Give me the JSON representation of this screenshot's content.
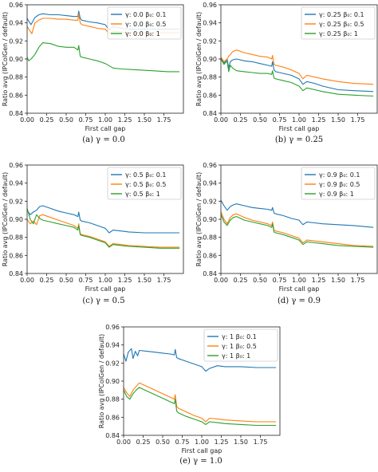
{
  "chart_data": [
    {
      "type": "line",
      "caption": "(a) γ = 0.0",
      "xlabel": "First call gap",
      "ylabel": "Ratio avg (IPColGen / default)",
      "xlim": [
        0,
        2.0
      ],
      "ylim": [
        0.84,
        0.96
      ],
      "xticks": [
        "0.00",
        "0.25",
        "0.50",
        "0.75",
        "1.00",
        "1.25",
        "1.50",
        "1.75"
      ],
      "yticks": [
        "0.84",
        "0.86",
        "0.88",
        "0.90",
        "0.92",
        "0.94",
        "0.96"
      ],
      "legend_position": "top-right",
      "series": [
        {
          "name": "γ: 0.0  β₀: 0.1",
          "color": "#1f77b4",
          "x": [
            0,
            0.02,
            0.05,
            0.1,
            0.15,
            0.2,
            0.3,
            0.4,
            0.5,
            0.6,
            0.65,
            0.66,
            0.68,
            0.7,
            0.8,
            0.9,
            1.0,
            1.05,
            1.1,
            1.2,
            1.3,
            1.5,
            1.7,
            1.95
          ],
          "y": [
            0.945,
            0.942,
            0.938,
            0.946,
            0.949,
            0.95,
            0.949,
            0.949,
            0.948,
            0.947,
            0.947,
            0.953,
            0.945,
            0.943,
            0.941,
            0.94,
            0.938,
            0.932,
            0.936,
            0.934,
            0.933,
            0.933,
            0.933,
            0.933
          ]
        },
        {
          "name": "γ: 0.0  β₀: 0.5",
          "color": "#ff7f0e",
          "x": [
            0,
            0.03,
            0.06,
            0.1,
            0.15,
            0.2,
            0.3,
            0.4,
            0.5,
            0.6,
            0.65,
            0.66,
            0.68,
            0.7,
            0.8,
            0.9,
            1.0,
            1.05,
            1.1,
            1.2,
            1.3,
            1.5,
            1.7,
            1.95
          ],
          "y": [
            0.936,
            0.932,
            0.928,
            0.94,
            0.943,
            0.945,
            0.945,
            0.944,
            0.944,
            0.943,
            0.943,
            0.95,
            0.94,
            0.938,
            0.936,
            0.934,
            0.933,
            0.928,
            0.931,
            0.93,
            0.929,
            0.929,
            0.929,
            0.929
          ]
        },
        {
          "name": "γ: 0.0  β₀: 1",
          "color": "#2ca02c",
          "x": [
            0,
            0.02,
            0.05,
            0.1,
            0.15,
            0.2,
            0.3,
            0.4,
            0.5,
            0.6,
            0.65,
            0.66,
            0.68,
            0.7,
            0.8,
            0.9,
            1.0,
            1.1,
            1.2,
            1.4,
            1.6,
            1.8,
            1.95
          ],
          "y": [
            0.902,
            0.898,
            0.9,
            0.905,
            0.913,
            0.918,
            0.917,
            0.914,
            0.913,
            0.913,
            0.91,
            0.915,
            0.903,
            0.902,
            0.9,
            0.898,
            0.895,
            0.89,
            0.889,
            0.888,
            0.887,
            0.886,
            0.886
          ]
        }
      ]
    },
    {
      "type": "line",
      "caption": "(b) γ = 0.25",
      "xlabel": "First call gap",
      "ylabel": "Ratio avg (IPColGen / default)",
      "xlim": [
        0,
        2.0
      ],
      "ylim": [
        0.84,
        0.96
      ],
      "xticks": [
        "0.00",
        "0.25",
        "0.50",
        "0.75",
        "1.00",
        "1.25",
        "1.50",
        "1.75"
      ],
      "yticks": [
        "0.84",
        "0.86",
        "0.88",
        "0.90",
        "0.92",
        "0.94",
        "0.96"
      ],
      "legend_position": "top-right",
      "series": [
        {
          "name": "γ: 0.25  β₀: 0.1",
          "color": "#1f77b4",
          "x": [
            0,
            0.04,
            0.08,
            0.1,
            0.12,
            0.15,
            0.2,
            0.3,
            0.4,
            0.5,
            0.6,
            0.65,
            0.66,
            0.68,
            0.7,
            0.8,
            0.9,
            1.0,
            1.05,
            1.1,
            1.2,
            1.3,
            1.5,
            1.7,
            1.95
          ],
          "y": [
            0.901,
            0.895,
            0.9,
            0.89,
            0.897,
            0.899,
            0.9,
            0.898,
            0.897,
            0.895,
            0.893,
            0.892,
            0.897,
            0.888,
            0.886,
            0.884,
            0.882,
            0.878,
            0.872,
            0.875,
            0.873,
            0.87,
            0.866,
            0.865,
            0.864
          ]
        },
        {
          "name": "γ: 0.25  β₀: 0.5",
          "color": "#ff7f0e",
          "x": [
            0,
            0.04,
            0.08,
            0.1,
            0.15,
            0.2,
            0.3,
            0.4,
            0.5,
            0.6,
            0.65,
            0.66,
            0.68,
            0.7,
            0.8,
            0.9,
            1.0,
            1.05,
            1.1,
            1.2,
            1.3,
            1.5,
            1.7,
            1.95
          ],
          "y": [
            0.902,
            0.897,
            0.9,
            0.903,
            0.908,
            0.91,
            0.907,
            0.905,
            0.903,
            0.902,
            0.9,
            0.904,
            0.894,
            0.893,
            0.891,
            0.888,
            0.884,
            0.878,
            0.882,
            0.88,
            0.878,
            0.875,
            0.873,
            0.872
          ]
        },
        {
          "name": "γ: 0.25  β₀: 1",
          "color": "#2ca02c",
          "x": [
            0,
            0.04,
            0.08,
            0.1,
            0.12,
            0.15,
            0.2,
            0.3,
            0.4,
            0.5,
            0.6,
            0.65,
            0.66,
            0.68,
            0.7,
            0.8,
            0.9,
            1.0,
            1.05,
            1.1,
            1.2,
            1.3,
            1.5,
            1.7,
            1.95
          ],
          "y": [
            0.9,
            0.894,
            0.898,
            0.886,
            0.893,
            0.89,
            0.887,
            0.886,
            0.885,
            0.884,
            0.884,
            0.883,
            0.887,
            0.879,
            0.878,
            0.876,
            0.874,
            0.87,
            0.865,
            0.868,
            0.866,
            0.864,
            0.861,
            0.86,
            0.859
          ]
        }
      ]
    },
    {
      "type": "line",
      "caption": "(c) γ = 0.5",
      "xlabel": "First call gap",
      "ylabel": "Ratio avg (IPColGen / default)",
      "xlim": [
        0,
        2.0
      ],
      "ylim": [
        0.84,
        0.96
      ],
      "xticks": [
        "0.00",
        "0.25",
        "0.50",
        "0.75",
        "1.00",
        "1.25",
        "1.50",
        "1.75"
      ],
      "yticks": [
        "0.84",
        "0.86",
        "0.88",
        "0.90",
        "0.92",
        "0.94",
        "0.96"
      ],
      "legend_position": "top-right",
      "series": [
        {
          "name": "γ: 0.5  β₀: 0.1",
          "color": "#1f77b4",
          "x": [
            0,
            0.04,
            0.08,
            0.12,
            0.16,
            0.2,
            0.3,
            0.4,
            0.5,
            0.6,
            0.65,
            0.66,
            0.68,
            0.7,
            0.8,
            0.9,
            1.0,
            1.05,
            1.1,
            1.2,
            1.3,
            1.5,
            1.7,
            1.95
          ],
          "y": [
            0.91,
            0.905,
            0.908,
            0.91,
            0.914,
            0.915,
            0.912,
            0.909,
            0.907,
            0.905,
            0.903,
            0.908,
            0.899,
            0.898,
            0.896,
            0.893,
            0.89,
            0.885,
            0.888,
            0.887,
            0.886,
            0.885,
            0.885,
            0.885
          ]
        },
        {
          "name": "γ: 0.5  β₀: 0.5",
          "color": "#ff7f0e",
          "x": [
            0,
            0.04,
            0.08,
            0.12,
            0.16,
            0.2,
            0.3,
            0.4,
            0.5,
            0.6,
            0.65,
            0.66,
            0.68,
            0.7,
            0.8,
            0.9,
            1.0,
            1.05,
            1.1,
            1.2,
            1.3,
            1.5,
            1.7,
            1.95
          ],
          "y": [
            0.9,
            0.895,
            0.898,
            0.894,
            0.904,
            0.905,
            0.902,
            0.899,
            0.896,
            0.893,
            0.89,
            0.895,
            0.884,
            0.883,
            0.881,
            0.878,
            0.875,
            0.87,
            0.873,
            0.872,
            0.871,
            0.87,
            0.869,
            0.869
          ]
        },
        {
          "name": "γ: 0.5  β₀: 1",
          "color": "#2ca02c",
          "x": [
            0,
            0.04,
            0.08,
            0.12,
            0.16,
            0.2,
            0.3,
            0.4,
            0.5,
            0.6,
            0.65,
            0.66,
            0.68,
            0.7,
            0.8,
            0.9,
            1.0,
            1.05,
            1.1,
            1.2,
            1.3,
            1.5,
            1.7,
            1.95
          ],
          "y": [
            0.912,
            0.9,
            0.895,
            0.905,
            0.901,
            0.899,
            0.897,
            0.895,
            0.893,
            0.891,
            0.888,
            0.893,
            0.883,
            0.882,
            0.88,
            0.877,
            0.874,
            0.869,
            0.872,
            0.871,
            0.87,
            0.869,
            0.868,
            0.868
          ]
        }
      ]
    },
    {
      "type": "line",
      "caption": "(d) γ = 0.9",
      "xlabel": "First call gap",
      "ylabel": "Ratio avg (IPColGen / default)",
      "xlim": [
        0,
        2.0
      ],
      "ylim": [
        0.84,
        0.96
      ],
      "xticks": [
        "0.00",
        "0.25",
        "0.50",
        "0.75",
        "1.00",
        "1.25",
        "1.50",
        "1.75"
      ],
      "yticks": [
        "0.84",
        "0.86",
        "0.88",
        "0.90",
        "0.92",
        "0.94",
        "0.96"
      ],
      "legend_position": "top-right",
      "series": [
        {
          "name": "γ: 0.9  β₀: 0.1",
          "color": "#1f77b4",
          "x": [
            0,
            0.04,
            0.08,
            0.12,
            0.16,
            0.2,
            0.3,
            0.4,
            0.5,
            0.6,
            0.65,
            0.66,
            0.68,
            0.7,
            0.8,
            0.9,
            1.0,
            1.05,
            1.1,
            1.2,
            1.3,
            1.5,
            1.7,
            1.95
          ],
          "y": [
            0.921,
            0.915,
            0.91,
            0.914,
            0.916,
            0.917,
            0.915,
            0.913,
            0.912,
            0.911,
            0.91,
            0.913,
            0.907,
            0.906,
            0.904,
            0.901,
            0.899,
            0.894,
            0.897,
            0.896,
            0.895,
            0.894,
            0.893,
            0.891
          ]
        },
        {
          "name": "γ: 0.9  β₀: 0.5",
          "color": "#ff7f0e",
          "x": [
            0,
            0.04,
            0.08,
            0.12,
            0.16,
            0.2,
            0.3,
            0.4,
            0.5,
            0.6,
            0.65,
            0.66,
            0.68,
            0.7,
            0.8,
            0.9,
            1.0,
            1.05,
            1.1,
            1.2,
            1.3,
            1.5,
            1.7,
            1.95
          ],
          "y": [
            0.908,
            0.9,
            0.895,
            0.902,
            0.905,
            0.906,
            0.902,
            0.899,
            0.897,
            0.895,
            0.893,
            0.897,
            0.888,
            0.887,
            0.885,
            0.882,
            0.879,
            0.874,
            0.877,
            0.876,
            0.875,
            0.873,
            0.871,
            0.87
          ]
        },
        {
          "name": "γ: 0.9  β₀: 1",
          "color": "#2ca02c",
          "x": [
            0,
            0.04,
            0.08,
            0.12,
            0.16,
            0.2,
            0.3,
            0.4,
            0.5,
            0.6,
            0.65,
            0.66,
            0.68,
            0.7,
            0.8,
            0.9,
            1.0,
            1.05,
            1.1,
            1.2,
            1.3,
            1.5,
            1.7,
            1.95
          ],
          "y": [
            0.905,
            0.897,
            0.893,
            0.899,
            0.902,
            0.903,
            0.899,
            0.897,
            0.895,
            0.893,
            0.891,
            0.895,
            0.886,
            0.885,
            0.883,
            0.88,
            0.877,
            0.872,
            0.875,
            0.874,
            0.873,
            0.871,
            0.87,
            0.869
          ]
        }
      ]
    },
    {
      "type": "line",
      "caption": "(e) γ = 1.0",
      "xlabel": "First call gap",
      "ylabel": "Ratio avg (IPColGen / default)",
      "xlim": [
        0,
        2.0
      ],
      "ylim": [
        0.84,
        0.96
      ],
      "xticks": [
        "0.00",
        "0.25",
        "0.50",
        "0.75",
        "1.00",
        "1.25",
        "1.50",
        "1.75"
      ],
      "yticks": [
        "0.84",
        "0.86",
        "0.88",
        "0.90",
        "0.92",
        "0.94",
        "0.96"
      ],
      "legend_position": "top-right",
      "series": [
        {
          "name": "γ: 1  β₀: 0.1",
          "color": "#1f77b4",
          "x": [
            0,
            0.03,
            0.06,
            0.1,
            0.12,
            0.15,
            0.18,
            0.2,
            0.3,
            0.4,
            0.5,
            0.6,
            0.65,
            0.66,
            0.68,
            0.7,
            0.8,
            0.9,
            1.0,
            1.05,
            1.1,
            1.2,
            1.3,
            1.5,
            1.7,
            1.95
          ],
          "y": [
            0.93,
            0.922,
            0.932,
            0.936,
            0.925,
            0.933,
            0.928,
            0.934,
            0.933,
            0.932,
            0.931,
            0.93,
            0.929,
            0.935,
            0.926,
            0.925,
            0.922,
            0.919,
            0.916,
            0.911,
            0.914,
            0.917,
            0.916,
            0.916,
            0.915,
            0.915
          ]
        },
        {
          "name": "γ: 1  β₀: 0.5",
          "color": "#ff7f0e",
          "x": [
            0,
            0.04,
            0.08,
            0.12,
            0.16,
            0.2,
            0.25,
            0.3,
            0.4,
            0.5,
            0.6,
            0.65,
            0.66,
            0.68,
            0.7,
            0.8,
            0.9,
            1.0,
            1.05,
            1.1,
            1.2,
            1.3,
            1.5,
            1.7,
            1.95
          ],
          "y": [
            0.893,
            0.887,
            0.883,
            0.89,
            0.894,
            0.898,
            0.896,
            0.894,
            0.89,
            0.886,
            0.882,
            0.88,
            0.885,
            0.872,
            0.87,
            0.866,
            0.862,
            0.859,
            0.855,
            0.859,
            0.858,
            0.857,
            0.856,
            0.855,
            0.855
          ]
        },
        {
          "name": "γ: 1  β₀: 1",
          "color": "#2ca02c",
          "x": [
            0,
            0.04,
            0.08,
            0.12,
            0.16,
            0.2,
            0.25,
            0.3,
            0.4,
            0.5,
            0.6,
            0.65,
            0.66,
            0.68,
            0.7,
            0.8,
            0.9,
            1.0,
            1.05,
            1.1,
            1.2,
            1.3,
            1.5,
            1.7,
            1.95
          ],
          "y": [
            0.89,
            0.883,
            0.88,
            0.886,
            0.89,
            0.893,
            0.891,
            0.889,
            0.885,
            0.881,
            0.877,
            0.875,
            0.88,
            0.867,
            0.865,
            0.861,
            0.858,
            0.855,
            0.852,
            0.855,
            0.854,
            0.853,
            0.852,
            0.851,
            0.851
          ]
        }
      ]
    }
  ]
}
